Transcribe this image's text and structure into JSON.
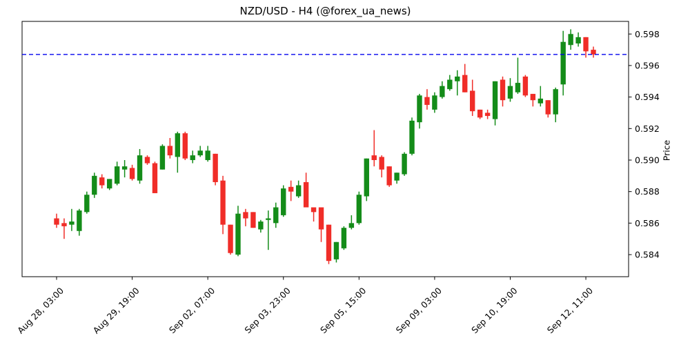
{
  "title": "NZD/USD - H4 (@forex_ua_news)",
  "chart_data": {
    "type": "candlestick",
    "symbol": "NZD/USD",
    "timeframe": "H4",
    "source_handle": "@forex_ua_news",
    "ylabel": "Price",
    "ylim": [
      0.5826,
      0.5988
    ],
    "grid": false,
    "y_ticks": [
      {
        "value": 0.584,
        "label": "0.584"
      },
      {
        "value": 0.586,
        "label": "0.586"
      },
      {
        "value": 0.588,
        "label": "0.588"
      },
      {
        "value": 0.59,
        "label": "0.590"
      },
      {
        "value": 0.592,
        "label": "0.592"
      },
      {
        "value": 0.594,
        "label": "0.594"
      },
      {
        "value": 0.596,
        "label": "0.596"
      },
      {
        "value": 0.598,
        "label": "0.598"
      }
    ],
    "x_ticks": [
      {
        "index": 0,
        "label": "Aug 28, 03:00"
      },
      {
        "index": 10,
        "label": "Aug 29, 19:00"
      },
      {
        "index": 20,
        "label": "Sep 02, 07:00"
      },
      {
        "index": 30,
        "label": "Sep 03, 23:00"
      },
      {
        "index": 40,
        "label": "Sep 05, 15:00"
      },
      {
        "index": 50,
        "label": "Sep 09, 03:00"
      },
      {
        "index": 60,
        "label": "Sep 10, 19:00"
      },
      {
        "index": 70,
        "label": "Sep 12, 11:00"
      }
    ],
    "reference_line": {
      "price": 0.5967,
      "color": "#0000ee",
      "style": "dashed"
    },
    "colors": {
      "up": "#148c19",
      "down": "#f02d28",
      "frame": "#000000"
    },
    "candles_ohlc": [
      [
        0.5863,
        0.5866,
        0.5857,
        0.5859
      ],
      [
        0.586,
        0.5863,
        0.585,
        0.5858
      ],
      [
        0.5859,
        0.5869,
        0.5855,
        0.5861
      ],
      [
        0.5855,
        0.5869,
        0.5852,
        0.5868
      ],
      [
        0.5867,
        0.588,
        0.5866,
        0.5878
      ],
      [
        0.5878,
        0.5892,
        0.5876,
        0.589
      ],
      [
        0.5889,
        0.5891,
        0.5882,
        0.5884
      ],
      [
        0.5882,
        0.5888,
        0.5881,
        0.5888
      ],
      [
        0.5885,
        0.5899,
        0.5884,
        0.5896
      ],
      [
        0.5894,
        0.59,
        0.5889,
        0.5896
      ],
      [
        0.5895,
        0.5897,
        0.5887,
        0.5888
      ],
      [
        0.5887,
        0.5907,
        0.5885,
        0.5903
      ],
      [
        0.5902,
        0.5903,
        0.5897,
        0.5898
      ],
      [
        0.5898,
        0.5899,
        0.5879,
        0.5879
      ],
      [
        0.5894,
        0.591,
        0.5894,
        0.5909
      ],
      [
        0.5909,
        0.5914,
        0.5901,
        0.5903
      ],
      [
        0.5902,
        0.5918,
        0.5892,
        0.5917
      ],
      [
        0.5917,
        0.5918,
        0.59,
        0.5901
      ],
      [
        0.59,
        0.5906,
        0.5898,
        0.5903
      ],
      [
        0.5903,
        0.5909,
        0.5902,
        0.5906
      ],
      [
        0.59,
        0.5909,
        0.5899,
        0.5906
      ],
      [
        0.5904,
        0.5904,
        0.5884,
        0.5886
      ],
      [
        0.5887,
        0.589,
        0.5853,
        0.5859
      ],
      [
        0.5859,
        0.5859,
        0.584,
        0.5841
      ],
      [
        0.584,
        0.5871,
        0.5839,
        0.5866
      ],
      [
        0.5867,
        0.5869,
        0.5858,
        0.5863
      ],
      [
        0.5867,
        0.5867,
        0.5857,
        0.5857
      ],
      [
        0.5856,
        0.5862,
        0.5854,
        0.5861
      ],
      [
        0.5862,
        0.5868,
        0.5843,
        0.5863
      ],
      [
        0.586,
        0.5873,
        0.5857,
        0.587
      ],
      [
        0.5865,
        0.5884,
        0.5864,
        0.5882
      ],
      [
        0.5883,
        0.5887,
        0.5874,
        0.588
      ],
      [
        0.5877,
        0.5887,
        0.5876,
        0.5884
      ],
      [
        0.5886,
        0.5892,
        0.587,
        0.587
      ],
      [
        0.587,
        0.587,
        0.5861,
        0.5867
      ],
      [
        0.587,
        0.587,
        0.5848,
        0.5856
      ],
      [
        0.5859,
        0.5859,
        0.5834,
        0.5836
      ],
      [
        0.5837,
        0.5848,
        0.5835,
        0.5848
      ],
      [
        0.5844,
        0.5858,
        0.5843,
        0.5857
      ],
      [
        0.5857,
        0.5865,
        0.5856,
        0.586
      ],
      [
        0.586,
        0.588,
        0.5859,
        0.5878
      ],
      [
        0.5877,
        0.5901,
        0.5874,
        0.5901
      ],
      [
        0.5903,
        0.5919,
        0.5896,
        0.59
      ],
      [
        0.5902,
        0.5903,
        0.5889,
        0.5894
      ],
      [
        0.5896,
        0.5896,
        0.5883,
        0.5884
      ],
      [
        0.5887,
        0.5892,
        0.5885,
        0.5892
      ],
      [
        0.5891,
        0.5905,
        0.589,
        0.5904
      ],
      [
        0.5904,
        0.5927,
        0.5903,
        0.5925
      ],
      [
        0.5924,
        0.5942,
        0.592,
        0.5941
      ],
      [
        0.594,
        0.5945,
        0.5932,
        0.5935
      ],
      [
        0.5932,
        0.5943,
        0.593,
        0.5941
      ],
      [
        0.594,
        0.595,
        0.5939,
        0.5947
      ],
      [
        0.5945,
        0.5954,
        0.5944,
        0.5951
      ],
      [
        0.595,
        0.5957,
        0.5941,
        0.5953
      ],
      [
        0.5954,
        0.5961,
        0.5943,
        0.5943
      ],
      [
        0.5944,
        0.5951,
        0.5928,
        0.5931
      ],
      [
        0.5932,
        0.5932,
        0.5926,
        0.5927
      ],
      [
        0.593,
        0.5932,
        0.5926,
        0.5928
      ],
      [
        0.5926,
        0.595,
        0.5922,
        0.595
      ],
      [
        0.5951,
        0.5953,
        0.5934,
        0.5938
      ],
      [
        0.5939,
        0.5952,
        0.5937,
        0.5947
      ],
      [
        0.5943,
        0.5965,
        0.5942,
        0.5949
      ],
      [
        0.5953,
        0.5954,
        0.594,
        0.5941
      ],
      [
        0.5942,
        0.5942,
        0.5934,
        0.5938
      ],
      [
        0.5936,
        0.5947,
        0.5934,
        0.5939
      ],
      [
        0.5938,
        0.5938,
        0.5927,
        0.5929
      ],
      [
        0.5929,
        0.5946,
        0.5924,
        0.5945
      ],
      [
        0.5948,
        0.5982,
        0.5941,
        0.5975
      ],
      [
        0.5973,
        0.5983,
        0.597,
        0.598
      ],
      [
        0.5974,
        0.5981,
        0.5972,
        0.5978
      ],
      [
        0.5978,
        0.5978,
        0.5965,
        0.5969
      ],
      [
        0.597,
        0.5972,
        0.5965,
        0.5967
      ]
    ]
  }
}
